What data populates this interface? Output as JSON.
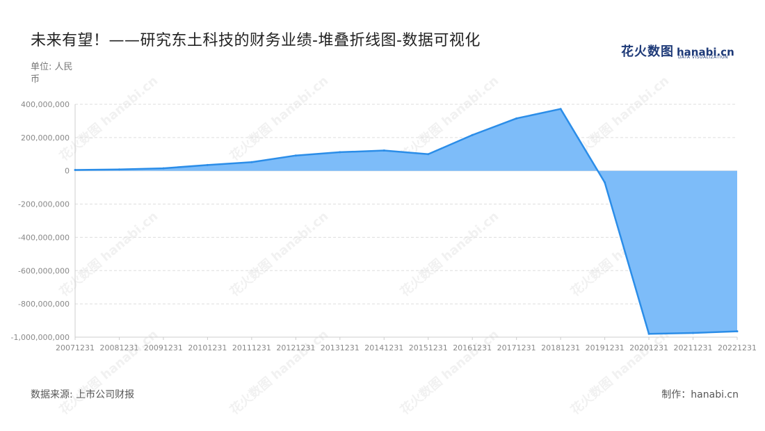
{
  "header": {
    "title": "未来有望！——研究东土科技的财务业绩-堆叠折线图-数据可视化",
    "unit_label": "单位: 人民币"
  },
  "brand": {
    "name_cn": "花火数图",
    "name_en": "hanabi.cn",
    "tagline": "DATA VISUALIZATION",
    "watermark": "花火数图 hanabi.cn"
  },
  "footer": {
    "source": "数据来源: 上市公司财报",
    "maker": "制作：hanabi.cn"
  },
  "chart_data": {
    "type": "area",
    "title": "未来有望！——研究东土科技的财务业绩-堆叠折线图-数据可视化",
    "xlabel": "",
    "ylabel": "单位: 人民币",
    "categories": [
      "20071231",
      "20081231",
      "20091231",
      "20101231",
      "20111231",
      "20121231",
      "20131231",
      "20141231",
      "20151231",
      "20161231",
      "20171231",
      "20181231",
      "20191231",
      "20201231",
      "20211231",
      "20221231"
    ],
    "series": [
      {
        "values": [
          5000000,
          8000000,
          15000000,
          35000000,
          52000000,
          92000000,
          112000000,
          122000000,
          100000000,
          215000000,
          315000000,
          372000000,
          -70000000,
          -980000000,
          -975000000,
          -965000000
        ]
      }
    ],
    "ylim": [
      -1000000000,
      400000000
    ],
    "yticks": [
      400000000,
      200000000,
      0,
      -200000000,
      -400000000,
      -600000000,
      -800000000,
      -1000000000
    ],
    "ytick_labels": [
      "400,000,000",
      "200,000,000",
      "0",
      "-200,000,000",
      "-400,000,000",
      "-600,000,000",
      "-800,000,000",
      "-1,000,000,000"
    ],
    "grid": true,
    "legend": "none",
    "colors": {
      "line": "#2b8de8",
      "fill": "#7dbcf9",
      "grid": "#dddddd"
    }
  }
}
